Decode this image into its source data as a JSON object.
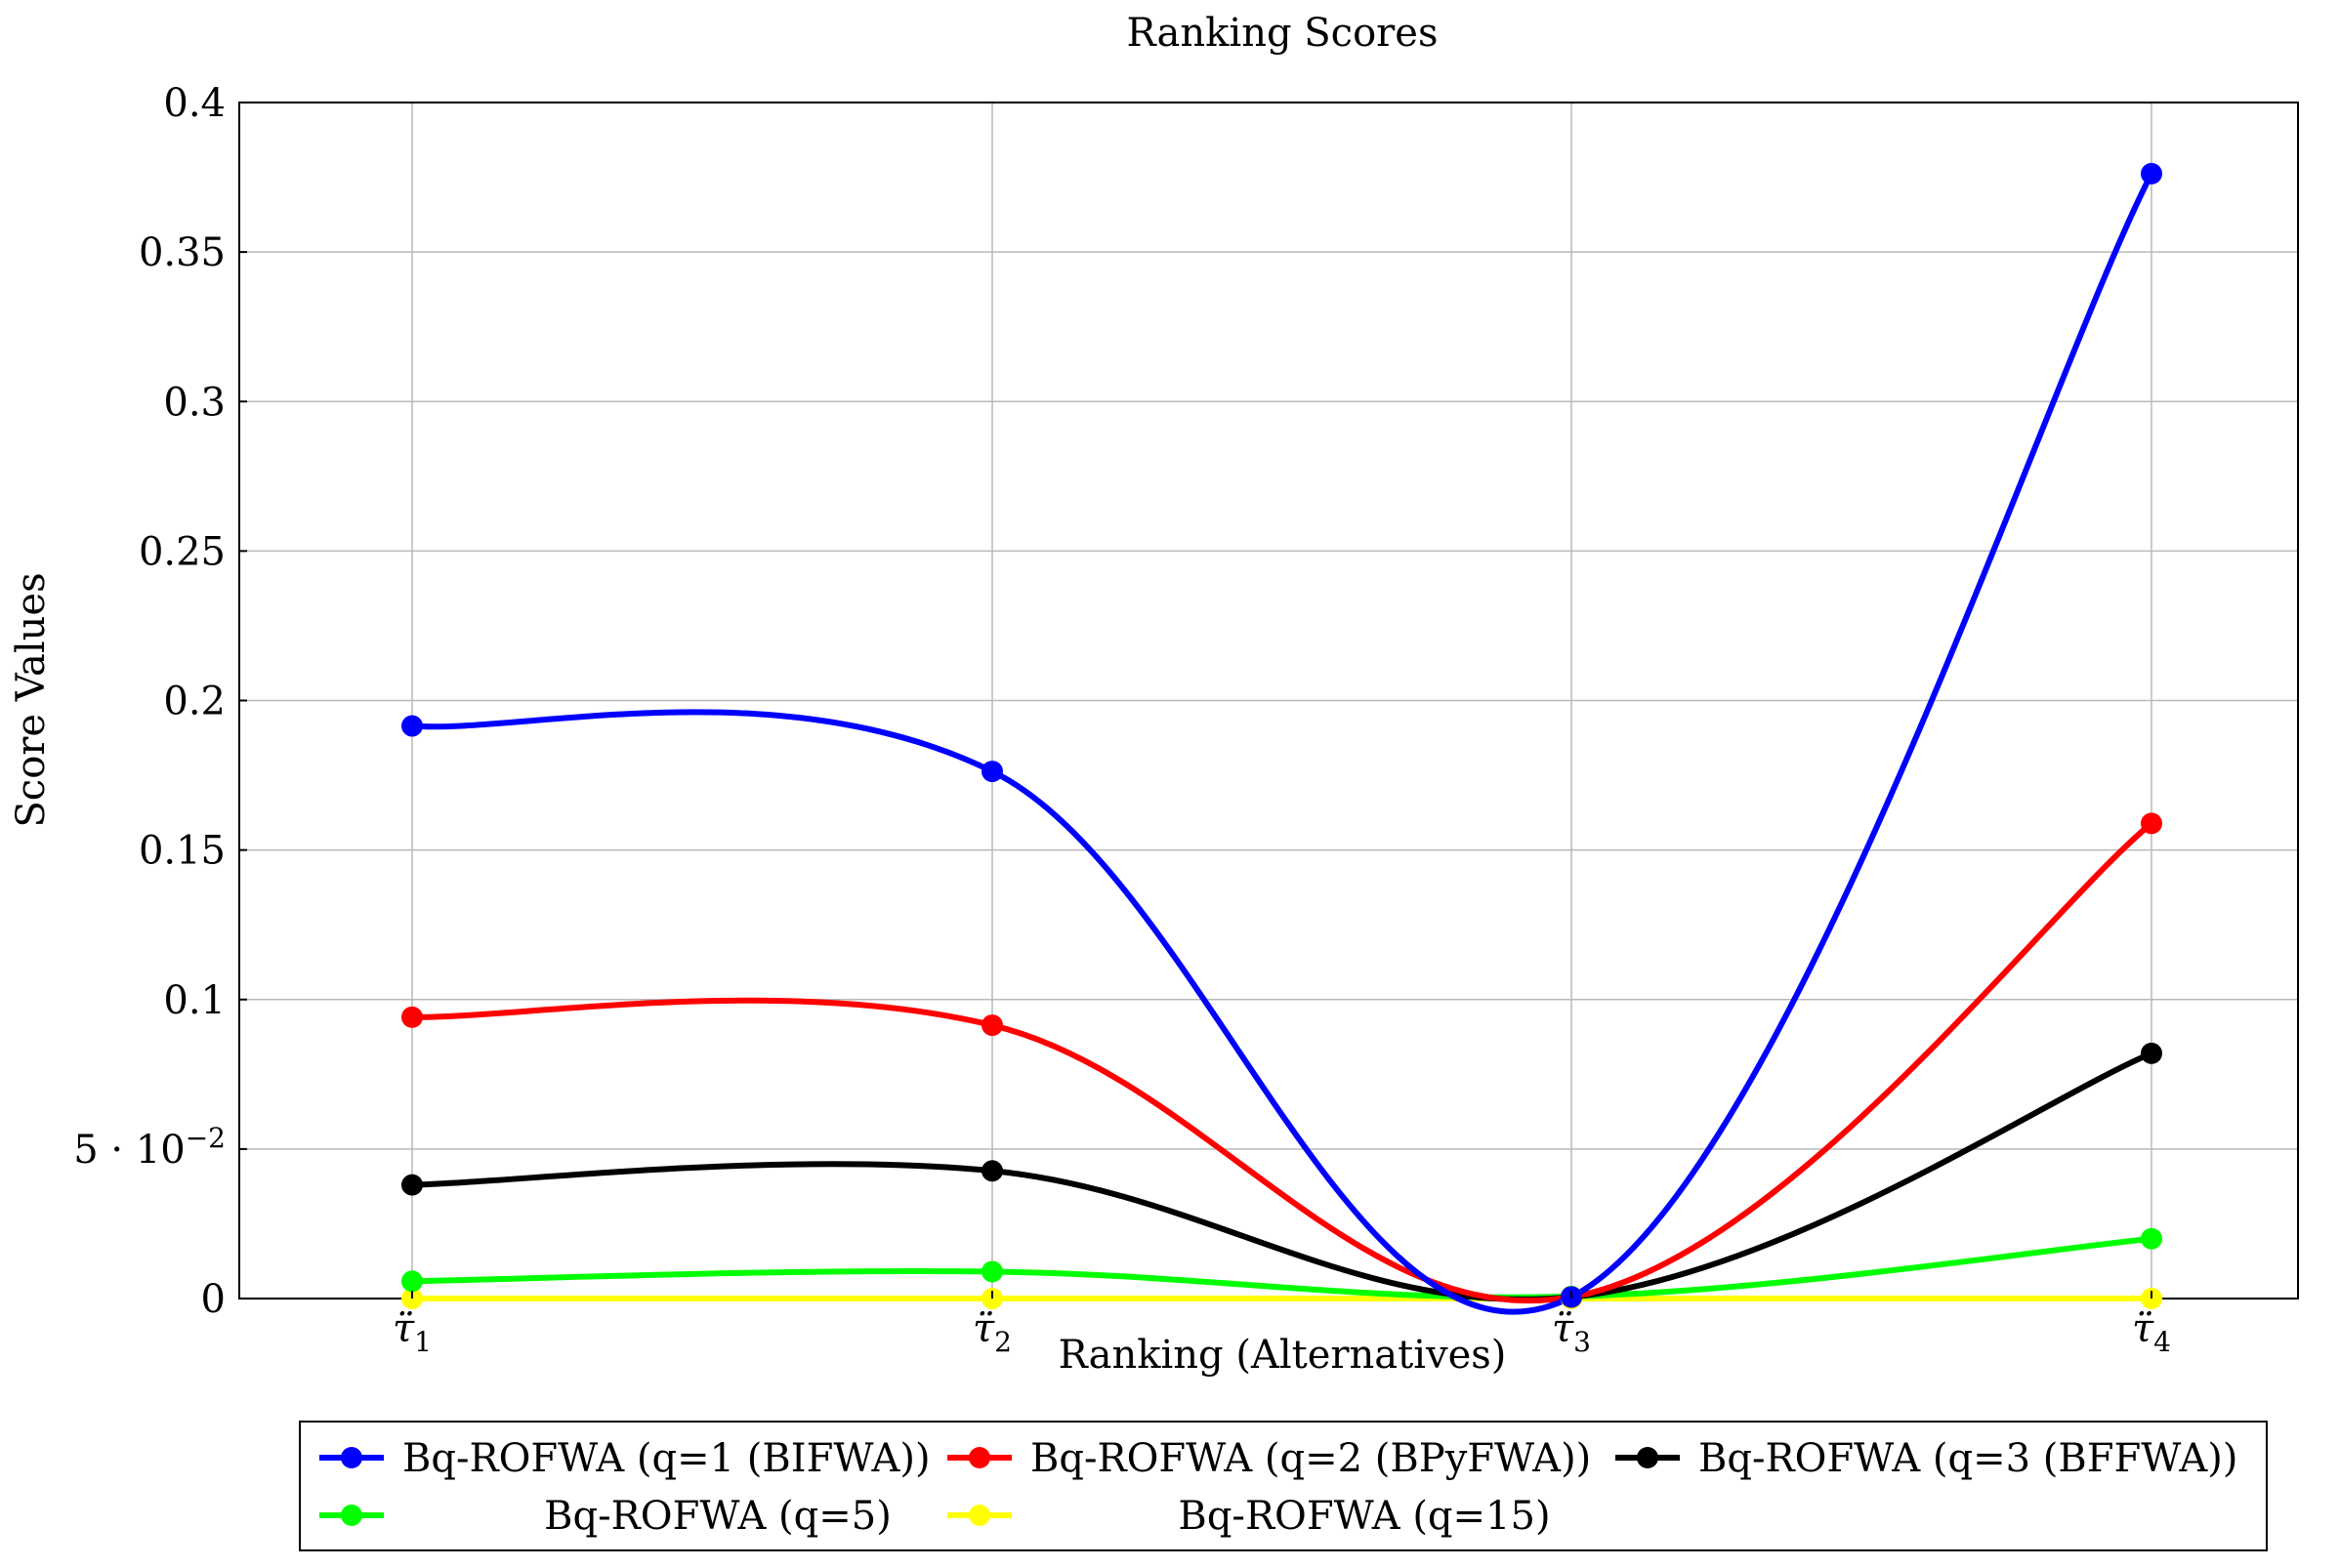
{
  "chart_data": {
    "type": "line",
    "title": "Ranking Scores",
    "xlabel": "Ranking (Alternatives)",
    "ylabel": "Score Values",
    "categories": [
      "τ̈1",
      "τ̈2",
      "τ̈3",
      "τ̈4"
    ],
    "category_labels": [
      {
        "base": "τ̈",
        "sub": "1"
      },
      {
        "base": "τ̈",
        "sub": "2"
      },
      {
        "base": "τ̈",
        "sub": "3"
      },
      {
        "base": "τ̈",
        "sub": "4"
      }
    ],
    "ylim": [
      0,
      0.4
    ],
    "yticks": [
      {
        "value": 0,
        "label": "0"
      },
      {
        "value": 0.05,
        "label": "5 · 10",
        "sup": "−2"
      },
      {
        "value": 0.1,
        "label": "0.1"
      },
      {
        "value": 0.15,
        "label": "0.15"
      },
      {
        "value": 0.2,
        "label": "0.2"
      },
      {
        "value": 0.25,
        "label": "0.25"
      },
      {
        "value": 0.3,
        "label": "0.3"
      },
      {
        "value": 0.35,
        "label": "0.35"
      },
      {
        "value": 0.4,
        "label": "0.4"
      }
    ],
    "grid": true,
    "smooth": true,
    "legend_position": "bottom",
    "legend_columns": 3,
    "series": [
      {
        "name": "Bq-ROFWA (q=1 (BIFWA))",
        "color": "#0000ff",
        "values": [
          0.1915,
          0.1763,
          0.0005,
          0.3762
        ]
      },
      {
        "name": "Bq-ROFWA (q=2 (BPyFWA))",
        "color": "#ff0000",
        "values": [
          0.0941,
          0.0914,
          0.0005,
          0.1589
        ]
      },
      {
        "name": "Bq-ROFWA (q=3 (BFFWA))",
        "color": "#000000",
        "values": [
          0.038,
          0.0427,
          0.0005,
          0.082
        ]
      },
      {
        "name": "Bq-ROFWA (q=5)",
        "color": "#00ff00",
        "values": [
          0.0058,
          0.009,
          0.0007,
          0.02
        ]
      },
      {
        "name": "Bq-ROFWA (q=15)",
        "color": "#ffff00",
        "values": [
          0.0,
          0.0,
          0.0,
          0.0
        ]
      }
    ]
  }
}
